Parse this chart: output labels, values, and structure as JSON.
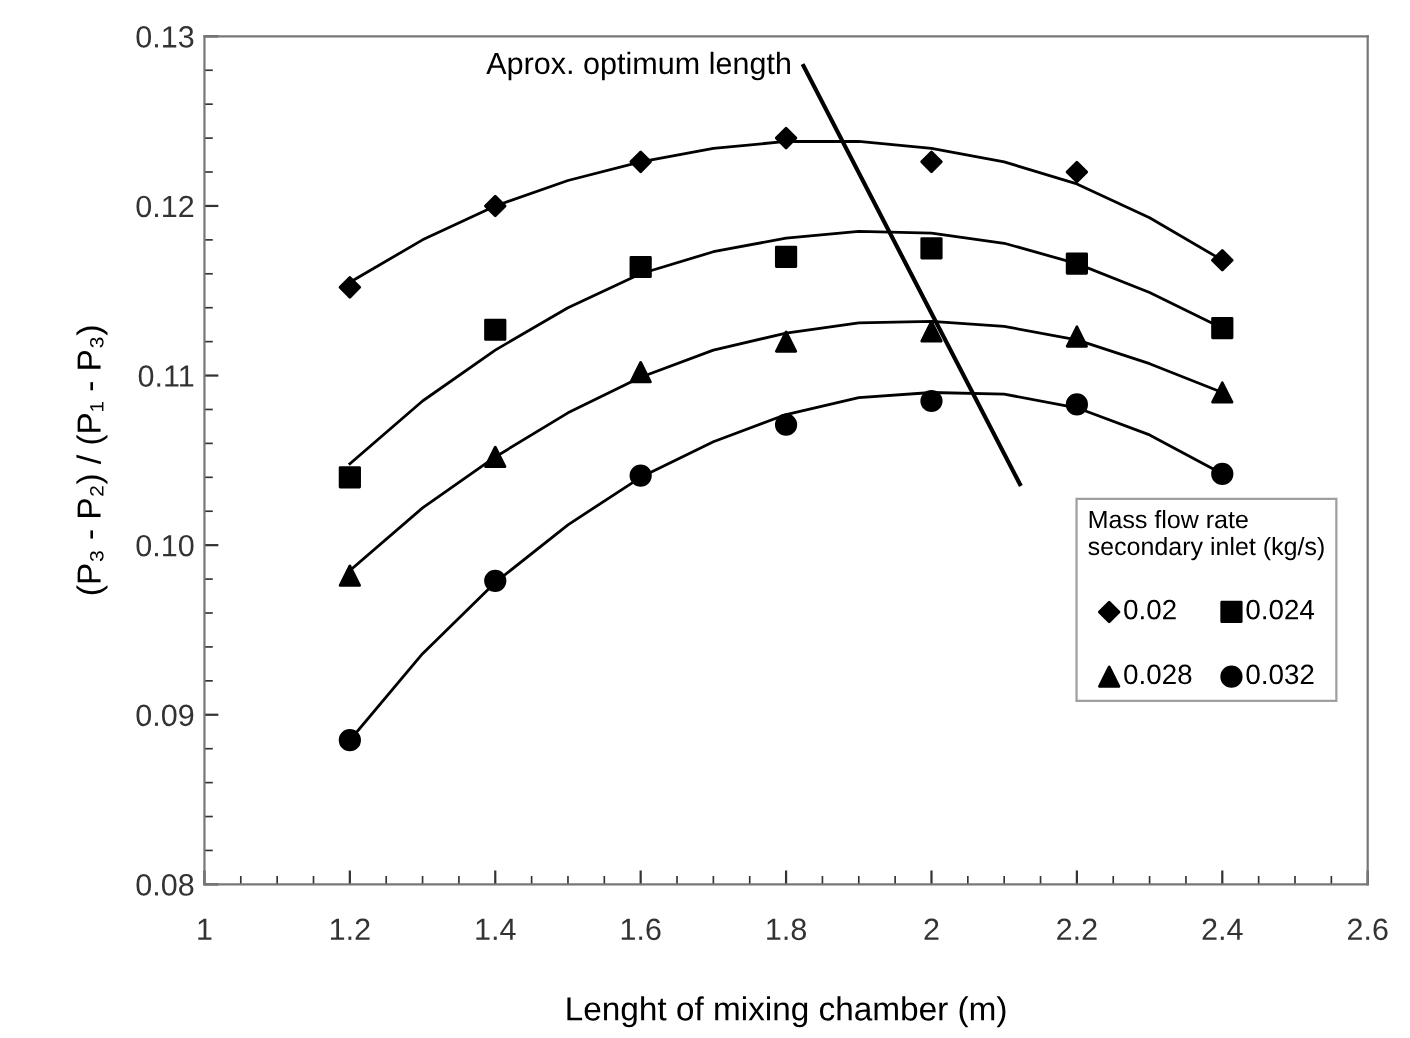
{
  "chart_data": {
    "type": "scatter",
    "xlabel": "Lenght of mixing chamber (m)",
    "ylabel": "(P₃ - P₂) / (P₁ - P₃)",
    "legend_title": "Mass flow rate\nsecondary inlet (kg/s)",
    "legend": "bottom right",
    "grid": false,
    "x": [
      1.2,
      1.4,
      1.6,
      1.8,
      2.0,
      2.2,
      2.4
    ],
    "xlim": [
      1,
      2.6
    ],
    "xticks": [
      1,
      1.2,
      1.4,
      1.6,
      1.8,
      2,
      2.2,
      2.4,
      2.6
    ],
    "ylim": [
      0.08,
      0.13
    ],
    "yticks": [
      0.08,
      0.09,
      {
        "value": 0.1,
        "label": "0.10"
      },
      0.11,
      0.12,
      0.13
    ],
    "annotations": [
      "Aprox. optimum length"
    ],
    "series": [
      {
        "name": "0.02",
        "color": "#000000",
        "marker": "diamond",
        "values": [
          0.1152,
          0.12,
          0.1226,
          0.124,
          0.1226,
          0.122,
          0.1168
        ]
      },
      {
        "name": "0.024",
        "color": "#000000",
        "marker": "square",
        "values": [
          0.104,
          0.1127,
          0.1164,
          0.117,
          0.1175,
          0.1166,
          0.1128
        ]
      },
      {
        "name": "0.028",
        "color": "#000000",
        "marker": "triangle",
        "values": [
          0.0982,
          0.1052,
          0.1102,
          0.112,
          0.1126,
          0.1123,
          0.109
        ]
      },
      {
        "name": "0.032",
        "color": "#000000",
        "marker": "circle",
        "values": [
          0.0885,
          0.0979,
          0.1041,
          0.1071,
          0.1085,
          0.1083,
          0.1042
        ]
      },
      {
        "type": "line",
        "color": "#000000",
        "marker": "none",
        "x": [
          1.2,
          1.3,
          1.4,
          1.5,
          1.6,
          1.7,
          1.8,
          1.9,
          2.0,
          2.1,
          2.2,
          2.3,
          2.4
        ],
        "values": [
          0.1155,
          0.118,
          0.12,
          0.1215,
          0.1226,
          0.1234,
          0.1238,
          0.1238,
          0.1234,
          0.1226,
          0.1213,
          0.1193,
          0.1168
        ]
      },
      {
        "type": "line",
        "color": "#000000",
        "marker": "none",
        "x": [
          1.2,
          1.3,
          1.4,
          1.5,
          1.6,
          1.7,
          1.8,
          1.9,
          2.0,
          2.1,
          2.2,
          2.3,
          2.4
        ],
        "values": [
          0.1048,
          0.1085,
          0.1115,
          0.114,
          0.116,
          0.1173,
          0.1181,
          0.1185,
          0.1184,
          0.1178,
          0.1166,
          0.1149,
          0.1128
        ]
      },
      {
        "type": "line",
        "color": "#000000",
        "marker": "none",
        "x": [
          1.2,
          1.3,
          1.4,
          1.5,
          1.6,
          1.7,
          1.8,
          1.9,
          2.0,
          2.1,
          2.2,
          2.3,
          2.4
        ],
        "values": [
          0.0985,
          0.1022,
          0.1052,
          0.1078,
          0.1099,
          0.1115,
          0.1125,
          0.1131,
          0.1132,
          0.1129,
          0.1121,
          0.1107,
          0.109
        ]
      },
      {
        "type": "line",
        "color": "#000000",
        "marker": "none",
        "x": [
          1.2,
          1.3,
          1.4,
          1.5,
          1.6,
          1.7,
          1.8,
          1.9,
          2.0,
          2.1,
          2.2,
          2.3,
          2.4
        ],
        "values": [
          0.0885,
          0.0936,
          0.0978,
          0.1012,
          0.104,
          0.1061,
          0.1077,
          0.1087,
          0.109,
          0.1089,
          0.1081,
          0.1065,
          0.1042
        ]
      }
    ]
  }
}
